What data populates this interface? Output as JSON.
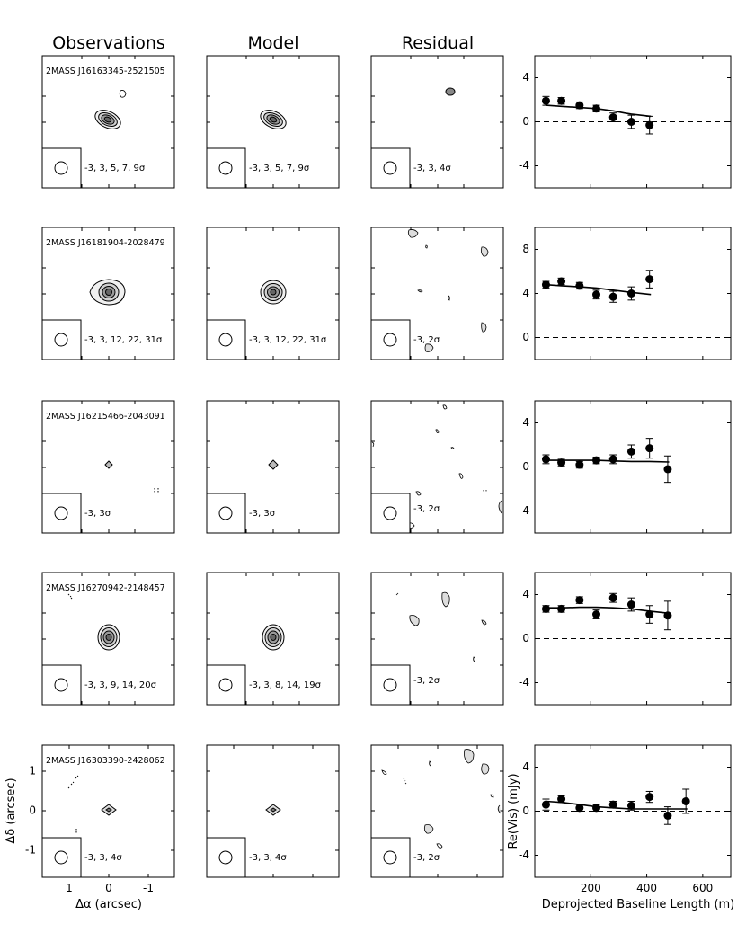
{
  "columns": [
    "Observations",
    "Model",
    "Residual"
  ],
  "rows": [
    {
      "source": "2MASS J16163345-2521505",
      "obs_levels": "-3, 3, 5, 7, 9σ",
      "model_levels": "-3, 3, 5, 7, 9σ",
      "resid_levels": "-3, 3, 4σ"
    },
    {
      "source": "2MASS J16181904-2028479",
      "obs_levels": "-3, 3, 12, 22, 31σ",
      "model_levels": "-3, 3, 12, 22, 31σ",
      "resid_levels": "-3, 2σ"
    },
    {
      "source": "2MASS J16215466-2043091",
      "obs_levels": "-3, 3σ",
      "model_levels": "-3, 3σ",
      "resid_levels": "-3, 2σ"
    },
    {
      "source": "2MASS J16270942-2148457",
      "obs_levels": "-3, 3, 9, 14, 20σ",
      "model_levels": "-3, 3, 8, 14, 19σ",
      "resid_levels": "-3, 2σ"
    },
    {
      "source": "2MASS J16303390-2428062",
      "obs_levels": "-3, 3, 4σ",
      "model_levels": "-3, 3, 4σ",
      "resid_levels": "-3, 2σ"
    }
  ],
  "image_axes": {
    "xlabel": "Δα (arcsec)",
    "ylabel": "Δδ (arcsec)",
    "x_ticks": [
      "1",
      "0",
      "-1"
    ],
    "y_ticks": [
      "1",
      "0",
      "-1"
    ]
  },
  "chart_data": [
    {
      "type": "scatter",
      "xlabel": "",
      "ylabel": "",
      "xlim": [
        0,
        700
      ],
      "ylim": [
        -6,
        6
      ],
      "yticks": [
        4,
        0,
        -4
      ],
      "points": [
        {
          "x": 40,
          "y": 1.9,
          "err": 0.4
        },
        {
          "x": 95,
          "y": 1.9,
          "err": 0.3
        },
        {
          "x": 160,
          "y": 1.5,
          "err": 0.3
        },
        {
          "x": 220,
          "y": 1.2,
          "err": 0.3
        },
        {
          "x": 280,
          "y": 0.4,
          "err": 0.4
        },
        {
          "x": 345,
          "y": 0.0,
          "err": 0.6
        },
        {
          "x": 410,
          "y": -0.3,
          "err": 0.8
        }
      ],
      "model": [
        [
          40,
          1.5
        ],
        [
          95,
          1.4
        ],
        [
          160,
          1.3
        ],
        [
          220,
          1.2
        ],
        [
          280,
          1.0
        ],
        [
          320,
          0.8
        ],
        [
          345,
          0.7
        ],
        [
          380,
          0.6
        ],
        [
          415,
          0.5
        ]
      ],
      "zero_line": true
    },
    {
      "type": "scatter",
      "xlabel": "",
      "ylabel": "",
      "xlim": [
        0,
        700
      ],
      "ylim": [
        -2,
        10
      ],
      "yticks": [
        8,
        4,
        0
      ],
      "points": [
        {
          "x": 40,
          "y": 4.8,
          "err": 0.3
        },
        {
          "x": 95,
          "y": 5.1,
          "err": 0.3
        },
        {
          "x": 160,
          "y": 4.7,
          "err": 0.3
        },
        {
          "x": 220,
          "y": 3.9,
          "err": 0.4
        },
        {
          "x": 280,
          "y": 3.7,
          "err": 0.5
        },
        {
          "x": 345,
          "y": 4.0,
          "err": 0.6
        },
        {
          "x": 410,
          "y": 5.3,
          "err": 0.8
        }
      ],
      "model": [
        [
          40,
          4.8
        ],
        [
          95,
          4.7
        ],
        [
          160,
          4.6
        ],
        [
          220,
          4.5
        ],
        [
          280,
          4.3
        ],
        [
          345,
          4.1
        ],
        [
          415,
          3.9
        ]
      ],
      "zero_line": true
    },
    {
      "type": "scatter",
      "xlabel": "",
      "ylabel": "",
      "xlim": [
        0,
        700
      ],
      "ylim": [
        -6,
        6
      ],
      "yticks": [
        4,
        0,
        -4
      ],
      "points": [
        {
          "x": 40,
          "y": 0.7,
          "err": 0.4
        },
        {
          "x": 95,
          "y": 0.4,
          "err": 0.3
        },
        {
          "x": 160,
          "y": 0.2,
          "err": 0.3
        },
        {
          "x": 220,
          "y": 0.6,
          "err": 0.3
        },
        {
          "x": 280,
          "y": 0.7,
          "err": 0.4
        },
        {
          "x": 345,
          "y": 1.4,
          "err": 0.6
        },
        {
          "x": 410,
          "y": 1.7,
          "err": 0.9
        },
        {
          "x": 475,
          "y": -0.2,
          "err": 1.2
        }
      ],
      "model": [
        [
          40,
          0.6
        ],
        [
          95,
          0.6
        ],
        [
          160,
          0.6
        ],
        [
          220,
          0.6
        ],
        [
          280,
          0.55
        ],
        [
          345,
          0.5
        ],
        [
          410,
          0.5
        ],
        [
          480,
          0.45
        ]
      ],
      "zero_line": true
    },
    {
      "type": "scatter",
      "xlabel": "",
      "ylabel": "",
      "xlim": [
        0,
        700
      ],
      "ylim": [
        -6,
        6
      ],
      "yticks": [
        4,
        0,
        -4
      ],
      "points": [
        {
          "x": 40,
          "y": 2.7,
          "err": 0.3
        },
        {
          "x": 95,
          "y": 2.7,
          "err": 0.3
        },
        {
          "x": 160,
          "y": 3.5,
          "err": 0.3
        },
        {
          "x": 220,
          "y": 2.2,
          "err": 0.4
        },
        {
          "x": 280,
          "y": 3.7,
          "err": 0.4
        },
        {
          "x": 345,
          "y": 3.1,
          "err": 0.6
        },
        {
          "x": 410,
          "y": 2.2,
          "err": 0.8
        },
        {
          "x": 475,
          "y": 2.1,
          "err": 1.3
        }
      ],
      "model": [
        [
          40,
          2.8
        ],
        [
          95,
          2.8
        ],
        [
          160,
          2.85
        ],
        [
          220,
          2.85
        ],
        [
          280,
          2.8
        ],
        [
          345,
          2.7
        ],
        [
          410,
          2.5
        ],
        [
          480,
          2.3
        ]
      ],
      "zero_line": true
    },
    {
      "type": "scatter",
      "xlabel": "Deprojected Baseline Length (m)",
      "ylabel": "Re(Vis) (mJy)",
      "xlim": [
        0,
        700
      ],
      "ylim": [
        -6,
        6
      ],
      "yticks": [
        4,
        0,
        -4
      ],
      "xticks": [
        200,
        400,
        600
      ],
      "points": [
        {
          "x": 40,
          "y": 0.6,
          "err": 0.5
        },
        {
          "x": 95,
          "y": 1.1,
          "err": 0.3
        },
        {
          "x": 160,
          "y": 0.3,
          "err": 0.3
        },
        {
          "x": 220,
          "y": 0.3,
          "err": 0.3
        },
        {
          "x": 280,
          "y": 0.6,
          "err": 0.3
        },
        {
          "x": 345,
          "y": 0.5,
          "err": 0.4
        },
        {
          "x": 410,
          "y": 1.3,
          "err": 0.5
        },
        {
          "x": 475,
          "y": -0.4,
          "err": 0.8
        },
        {
          "x": 540,
          "y": 0.9,
          "err": 1.1
        }
      ],
      "model": [
        [
          40,
          0.9
        ],
        [
          95,
          0.8
        ],
        [
          160,
          0.6
        ],
        [
          220,
          0.4
        ],
        [
          280,
          0.3
        ],
        [
          345,
          0.2
        ],
        [
          410,
          0.2
        ],
        [
          480,
          0.2
        ],
        [
          545,
          0.2
        ]
      ],
      "zero_line": true
    }
  ]
}
